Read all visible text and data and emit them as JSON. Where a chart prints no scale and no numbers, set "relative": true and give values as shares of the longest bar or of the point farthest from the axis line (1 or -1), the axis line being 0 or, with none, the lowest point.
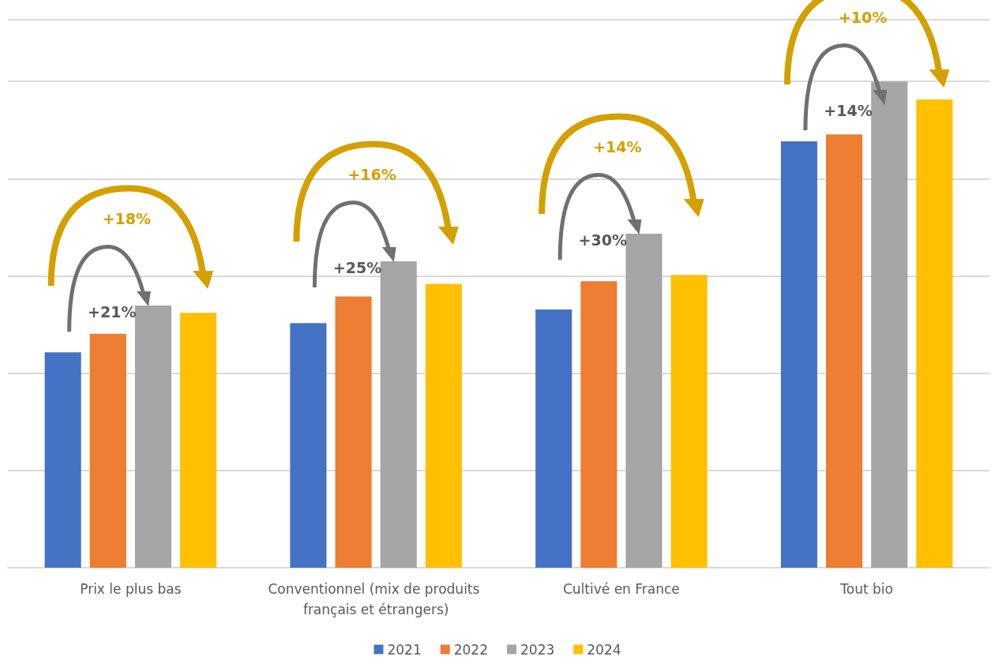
{
  "chart_data": {
    "type": "bar",
    "relative": true,
    "grid": true,
    "legend": "bottom",
    "categories": [
      "Prix le plus bas",
      "Conventionnel (mix de produits français et étrangers)",
      "Cultivé en France",
      "Tout bio"
    ],
    "series": [
      {
        "name": "2021",
        "color": "#4472c4",
        "values": [
          0.443,
          0.503,
          0.531,
          0.877
        ]
      },
      {
        "name": "2022",
        "color": "#ed7d31",
        "values": [
          0.481,
          0.558,
          0.589,
          0.891
        ]
      },
      {
        "name": "2023",
        "color": "#a5a5a5",
        "values": [
          0.539,
          0.63,
          0.687,
          1
        ]
      },
      {
        "name": "2024",
        "color": "#ffc000",
        "values": [
          0.524,
          0.584,
          0.602,
          0.963
        ]
      }
    ],
    "annotations": [
      "+18%",
      "+21%",
      "+16%",
      "+25%",
      "+14%",
      "+30%",
      "+10%",
      "+14%"
    ]
  }
}
